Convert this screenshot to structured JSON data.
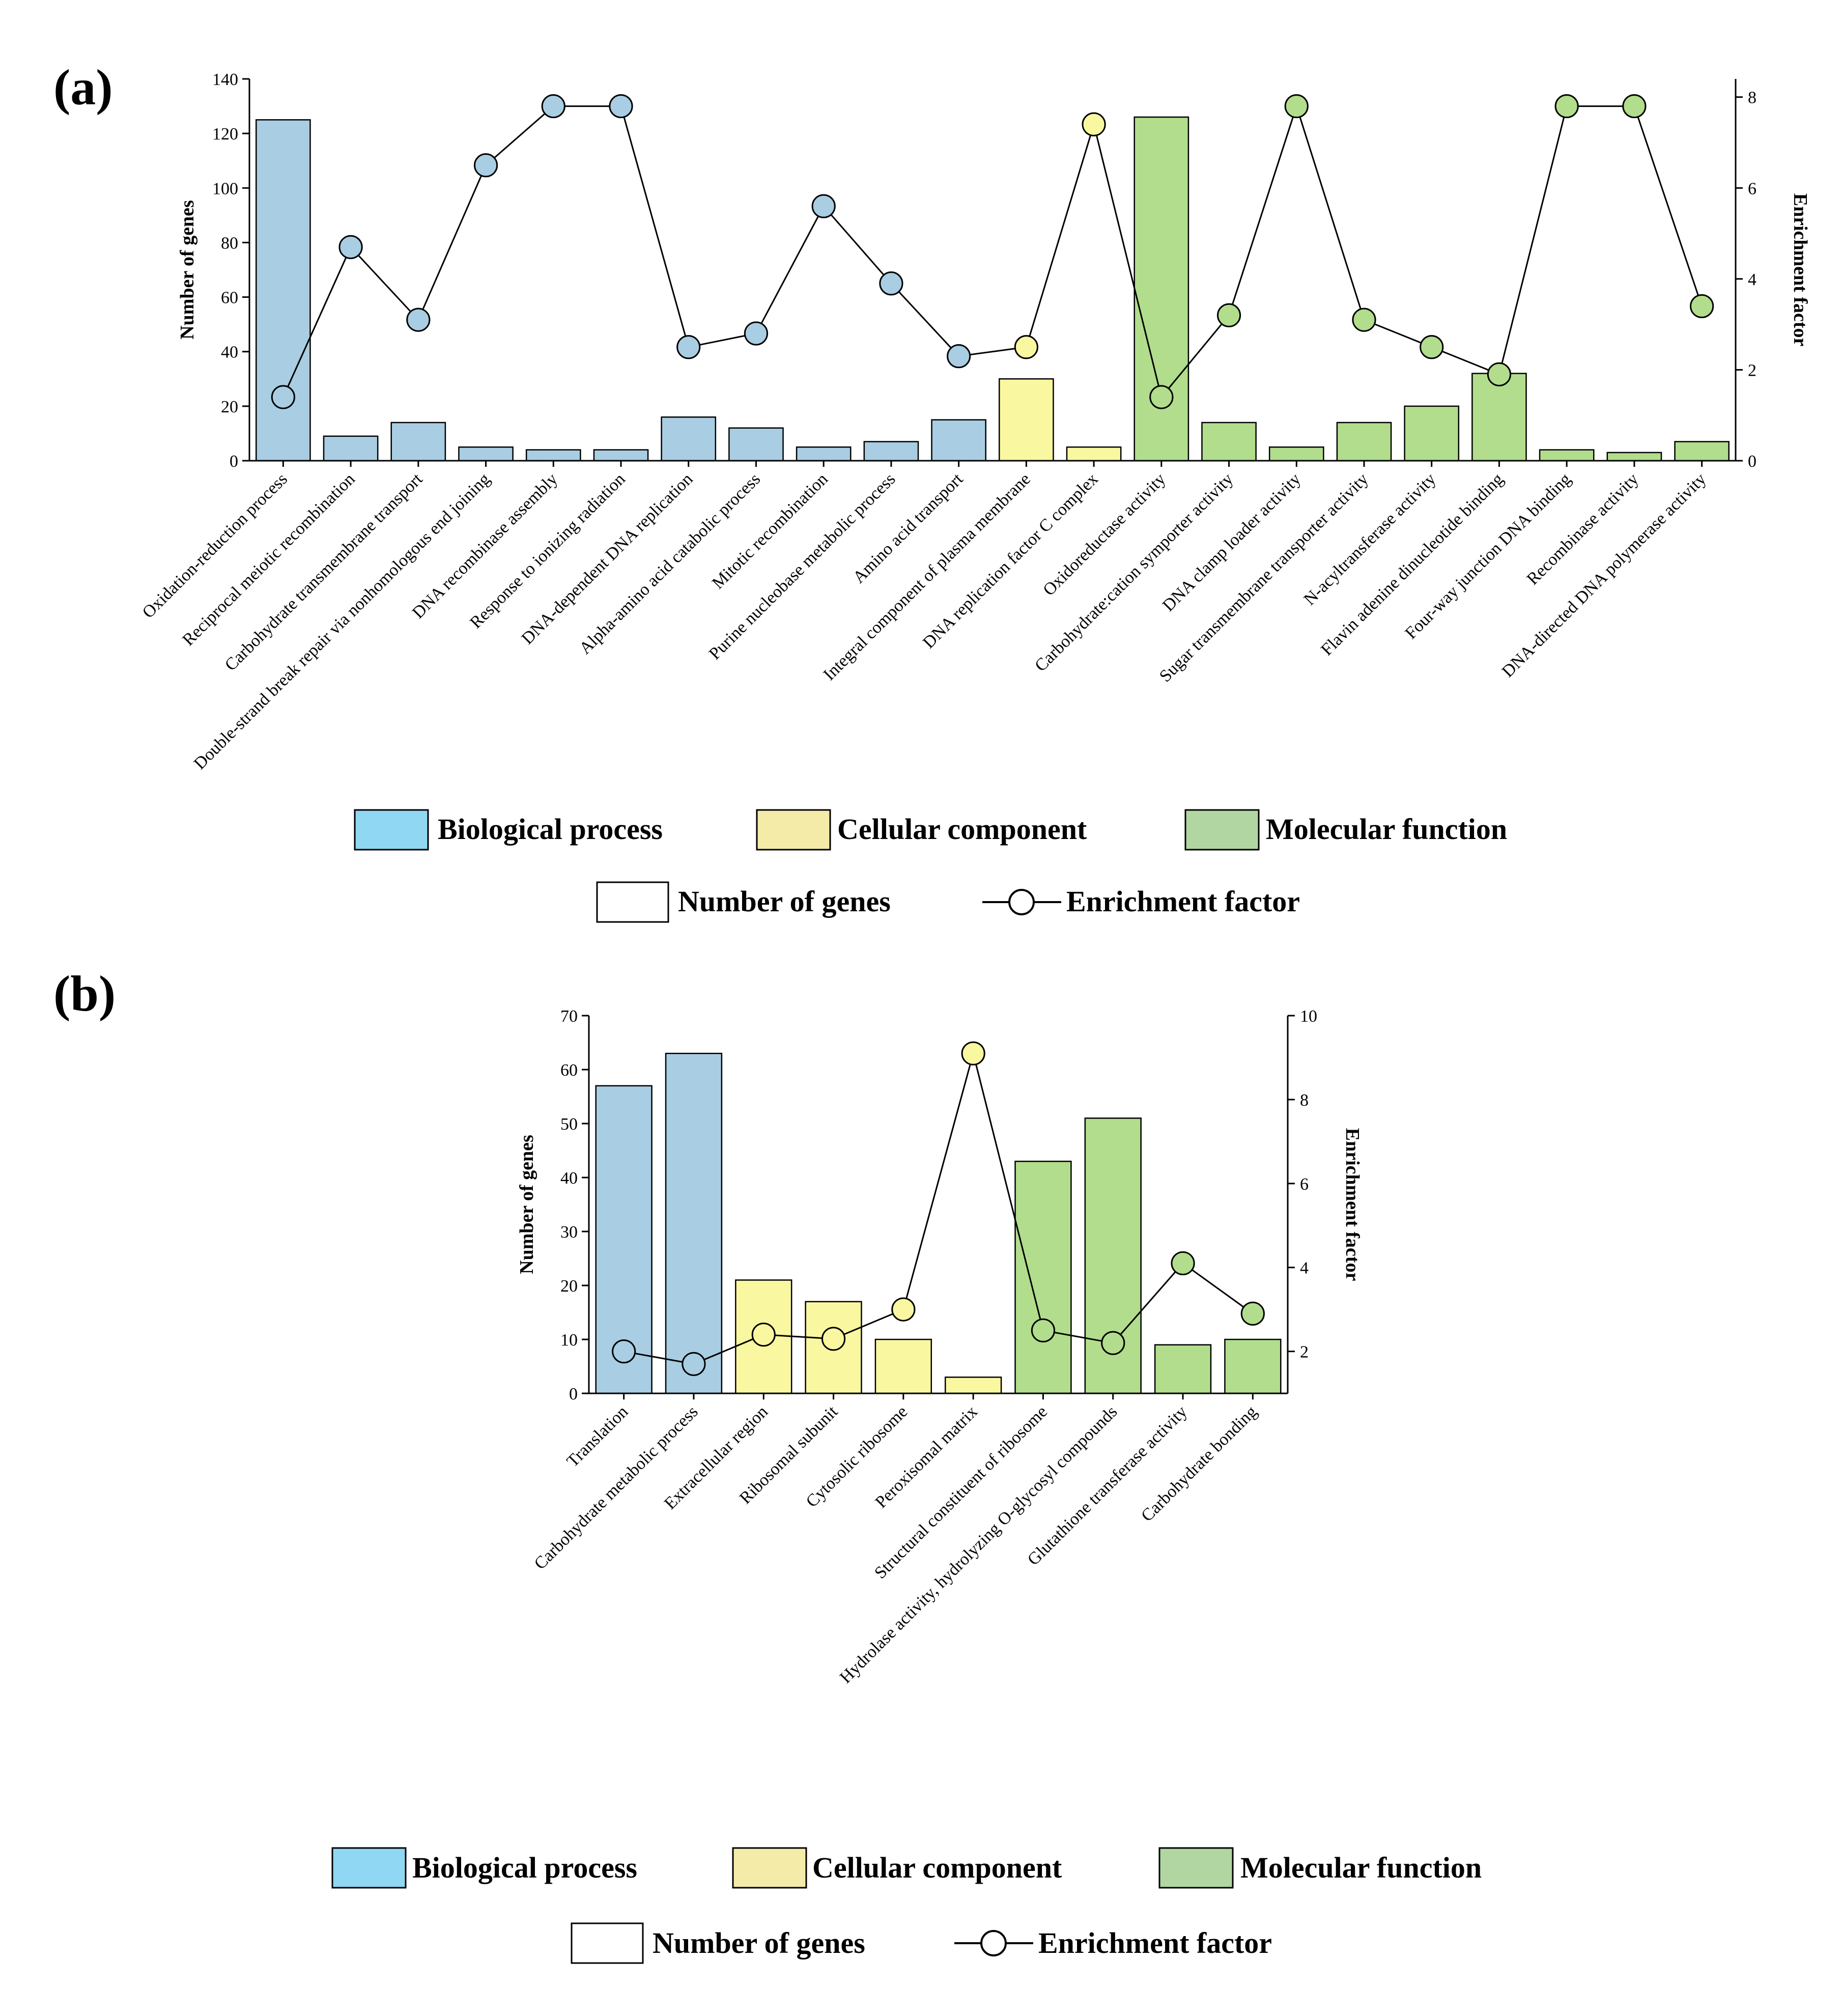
{
  "colors": {
    "biological": "#a9cde2",
    "cellular": "#f9f7a0",
    "molecular": "#b1dd8c",
    "legend_biological": "#8fd7f2",
    "legend_cellular": "#f4eba9",
    "legend_molecular": "#b2d6a2"
  },
  "legend": {
    "biological": "Biological process",
    "cellular": "Cellular component",
    "molecular": "Molecular function",
    "number_of_genes": "Number of genes",
    "enrichment_factor": "Enrichment factor"
  },
  "chart_data": [
    {
      "panel": "(a)",
      "type": "bar+line",
      "ylabel": "Number of genes",
      "y2label": "Enrichment factor",
      "ylim": [
        0,
        140
      ],
      "yticks": [
        0,
        20,
        40,
        60,
        80,
        100,
        120,
        140
      ],
      "y2lim": [
        0,
        8.4
      ],
      "y2ticks": [
        0,
        2,
        4,
        6,
        8
      ],
      "categories": [
        "Oxidation-reduction process",
        "Reciprocal meiotic recombination",
        "Carbohydrate transmembrane transport",
        "Double-strand break repair via nonhomologous end joining",
        "DNA recombinase assembly",
        "Response to ionizing radiation",
        "DNA-dependent DNA replication",
        "Alpha-amino acid catabolic process",
        "Mitotic recombination",
        "Purine nucleobase metabolic process",
        "Amino acid transport",
        "Integral component of plasma membrane",
        "DNA replication factor C complex",
        "Oxidoreductase activity",
        "Carbohydrate:cation symporter activity",
        "DNA clamp loader activity",
        "Sugar transmembrane transporter activity",
        "N-acyltransferase activity",
        "Flavin adenine dinucleotide binding",
        "Four-way junction DNA binding",
        "Recombinase activity",
        "DNA-directed DNA polymerase activity"
      ],
      "groups": [
        "biological",
        "biological",
        "biological",
        "biological",
        "biological",
        "biological",
        "biological",
        "biological",
        "biological",
        "biological",
        "biological",
        "cellular",
        "cellular",
        "molecular",
        "molecular",
        "molecular",
        "molecular",
        "molecular",
        "molecular",
        "molecular",
        "molecular",
        "molecular"
      ],
      "number_of_genes": [
        125,
        9,
        14,
        5,
        4,
        4,
        16,
        12,
        5,
        7,
        15,
        30,
        5,
        126,
        14,
        5,
        14,
        20,
        32,
        4,
        3,
        7
      ],
      "enrichment_factor": [
        1.4,
        4.7,
        3.1,
        6.5,
        7.8,
        7.8,
        2.5,
        2.8,
        5.6,
        3.9,
        2.3,
        2.5,
        7.4,
        1.4,
        3.2,
        7.8,
        3.1,
        2.5,
        1.9,
        7.8,
        7.8,
        3.4
      ]
    },
    {
      "panel": "(b)",
      "type": "bar+line",
      "ylabel": "Number of genes",
      "y2label": "Enrichment factor",
      "ylim": [
        0,
        70
      ],
      "yticks": [
        0,
        10,
        20,
        30,
        40,
        50,
        60,
        70
      ],
      "y2lim": [
        1,
        10
      ],
      "y2ticks": [
        2,
        4,
        6,
        8,
        10
      ],
      "categories": [
        "Translation",
        "Carbohydrate metabolic process",
        "Extracellular region",
        "Ribosomal subunit",
        "Cytosolic ribosome",
        "Peroxisomal matrix",
        "Structural constituent of ribosome",
        "Hydrolase activity, hydrolyzing O-glycosyl compounds",
        "Glutathione transferase activity",
        "Carbohydrate bonding"
      ],
      "groups": [
        "biological",
        "biological",
        "cellular",
        "cellular",
        "cellular",
        "cellular",
        "molecular",
        "molecular",
        "molecular",
        "molecular"
      ],
      "number_of_genes": [
        57,
        63,
        21,
        17,
        10,
        3,
        43,
        51,
        9,
        10
      ],
      "enrichment_factor": [
        2.0,
        1.7,
        2.4,
        2.3,
        3.0,
        9.1,
        2.5,
        2.2,
        4.1,
        2.9
      ]
    }
  ]
}
